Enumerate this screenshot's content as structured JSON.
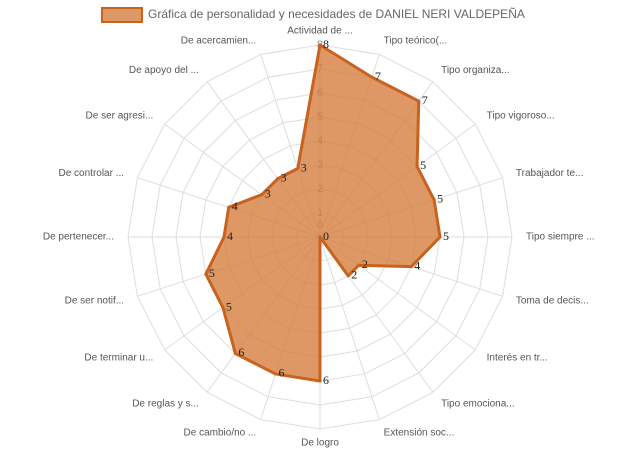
{
  "chart_data": {
    "type": "radar",
    "series": [
      {
        "name": "Gráfica de personalidad y necesidades de DANIEL NERI VALDEPEÑA",
        "color": "#c8621e",
        "fill": "rgba(214,126,62,0.8)",
        "values": [
          8,
          7,
          7,
          5,
          5,
          5,
          4,
          2,
          2,
          0,
          6,
          6,
          6,
          5,
          5,
          4,
          4,
          3,
          3,
          3
        ]
      }
    ],
    "categories": [
      "Actividad de ...",
      "Tipo teórico(...",
      "Tipo organiza...",
      "Tipo vigoroso...",
      "Trabajador te...",
      "Tipo siempre ...",
      "Toma de decis...",
      "Interés en tr...",
      "Tipo emociona...",
      "Extensión soc...",
      "De logro",
      "De cambio/no ...",
      "De reglas y s...",
      "De terminar u...",
      "De ser notif...",
      "De pertenecer...",
      "De controlar ...",
      "De ser agresi...",
      "De apoyo del ...",
      "De acercamien..."
    ],
    "ylim": [
      0,
      8
    ],
    "yticks": [
      0,
      1,
      2,
      3,
      4,
      5,
      6,
      7,
      8
    ],
    "grid": true,
    "legend": "top"
  }
}
